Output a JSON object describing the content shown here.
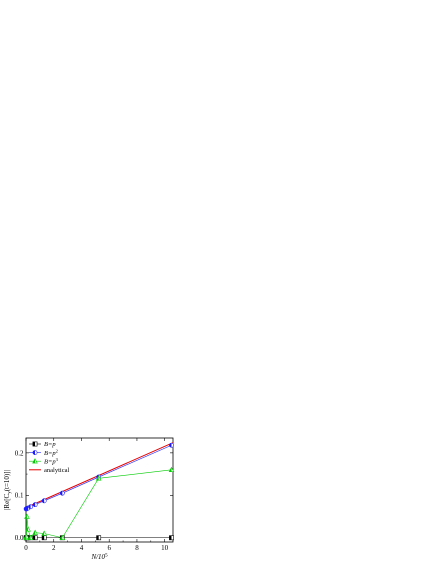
{
  "chart_data": {
    "type": "line",
    "xlabel": "N/10",
    "xlabel_sup": "5",
    "ylabel": "|Re[C",
    "ylabel_sub": "y",
    "ylabel_rest": "(t=10)]|",
    "xlim": [
      0,
      10.6
    ],
    "ylim": [
      -0.01,
      0.235
    ],
    "xticks": [
      0,
      2,
      4,
      6,
      8,
      10
    ],
    "yticks": [
      0.0,
      0.1,
      0.2
    ],
    "ytick_labels": [
      "0.0",
      "0.1",
      "0.2"
    ],
    "legend_position": "top-left",
    "series": [
      {
        "name": "B=p",
        "name_base": "B=p",
        "name_sup": "",
        "color": "#000000",
        "marker": "square-half",
        "x": [
          0.01,
          0.03,
          0.07,
          0.15,
          0.33,
          0.66,
          1.31,
          2.62,
          5.24,
          10.49
        ],
        "y": [
          0.0,
          0.0,
          0.0,
          0.0,
          0.0,
          0.0,
          0.0,
          0.0,
          0.0,
          0.0
        ]
      },
      {
        "name": "B=p2",
        "name_base": "B=p",
        "name_sup": "2",
        "color": "#1a1aff",
        "marker": "circle-half",
        "x": [
          0.01,
          0.03,
          0.07,
          0.15,
          0.33,
          0.66,
          1.31,
          2.62,
          5.24,
          10.49
        ],
        "y": [
          0.068,
          0.068,
          0.069,
          0.07,
          0.073,
          0.078,
          0.087,
          0.105,
          0.143,
          0.218
        ]
      },
      {
        "name": "B=p3",
        "name_base": "B=p",
        "name_sup": "3",
        "color": "#00cc00",
        "marker": "triangle-half",
        "x": [
          0.01,
          0.03,
          0.07,
          0.15,
          0.33,
          0.66,
          1.31,
          2.62,
          5.24,
          10.49
        ],
        "y": [
          0.0,
          0.003,
          0.05,
          0.02,
          0.0,
          0.012,
          0.01,
          0.0,
          0.14,
          0.16
        ]
      }
    ],
    "analytical": {
      "name": "analytical",
      "color": "#e60000",
      "x": [
        0,
        10.6
      ],
      "y": [
        0.071,
        0.224
      ]
    }
  }
}
